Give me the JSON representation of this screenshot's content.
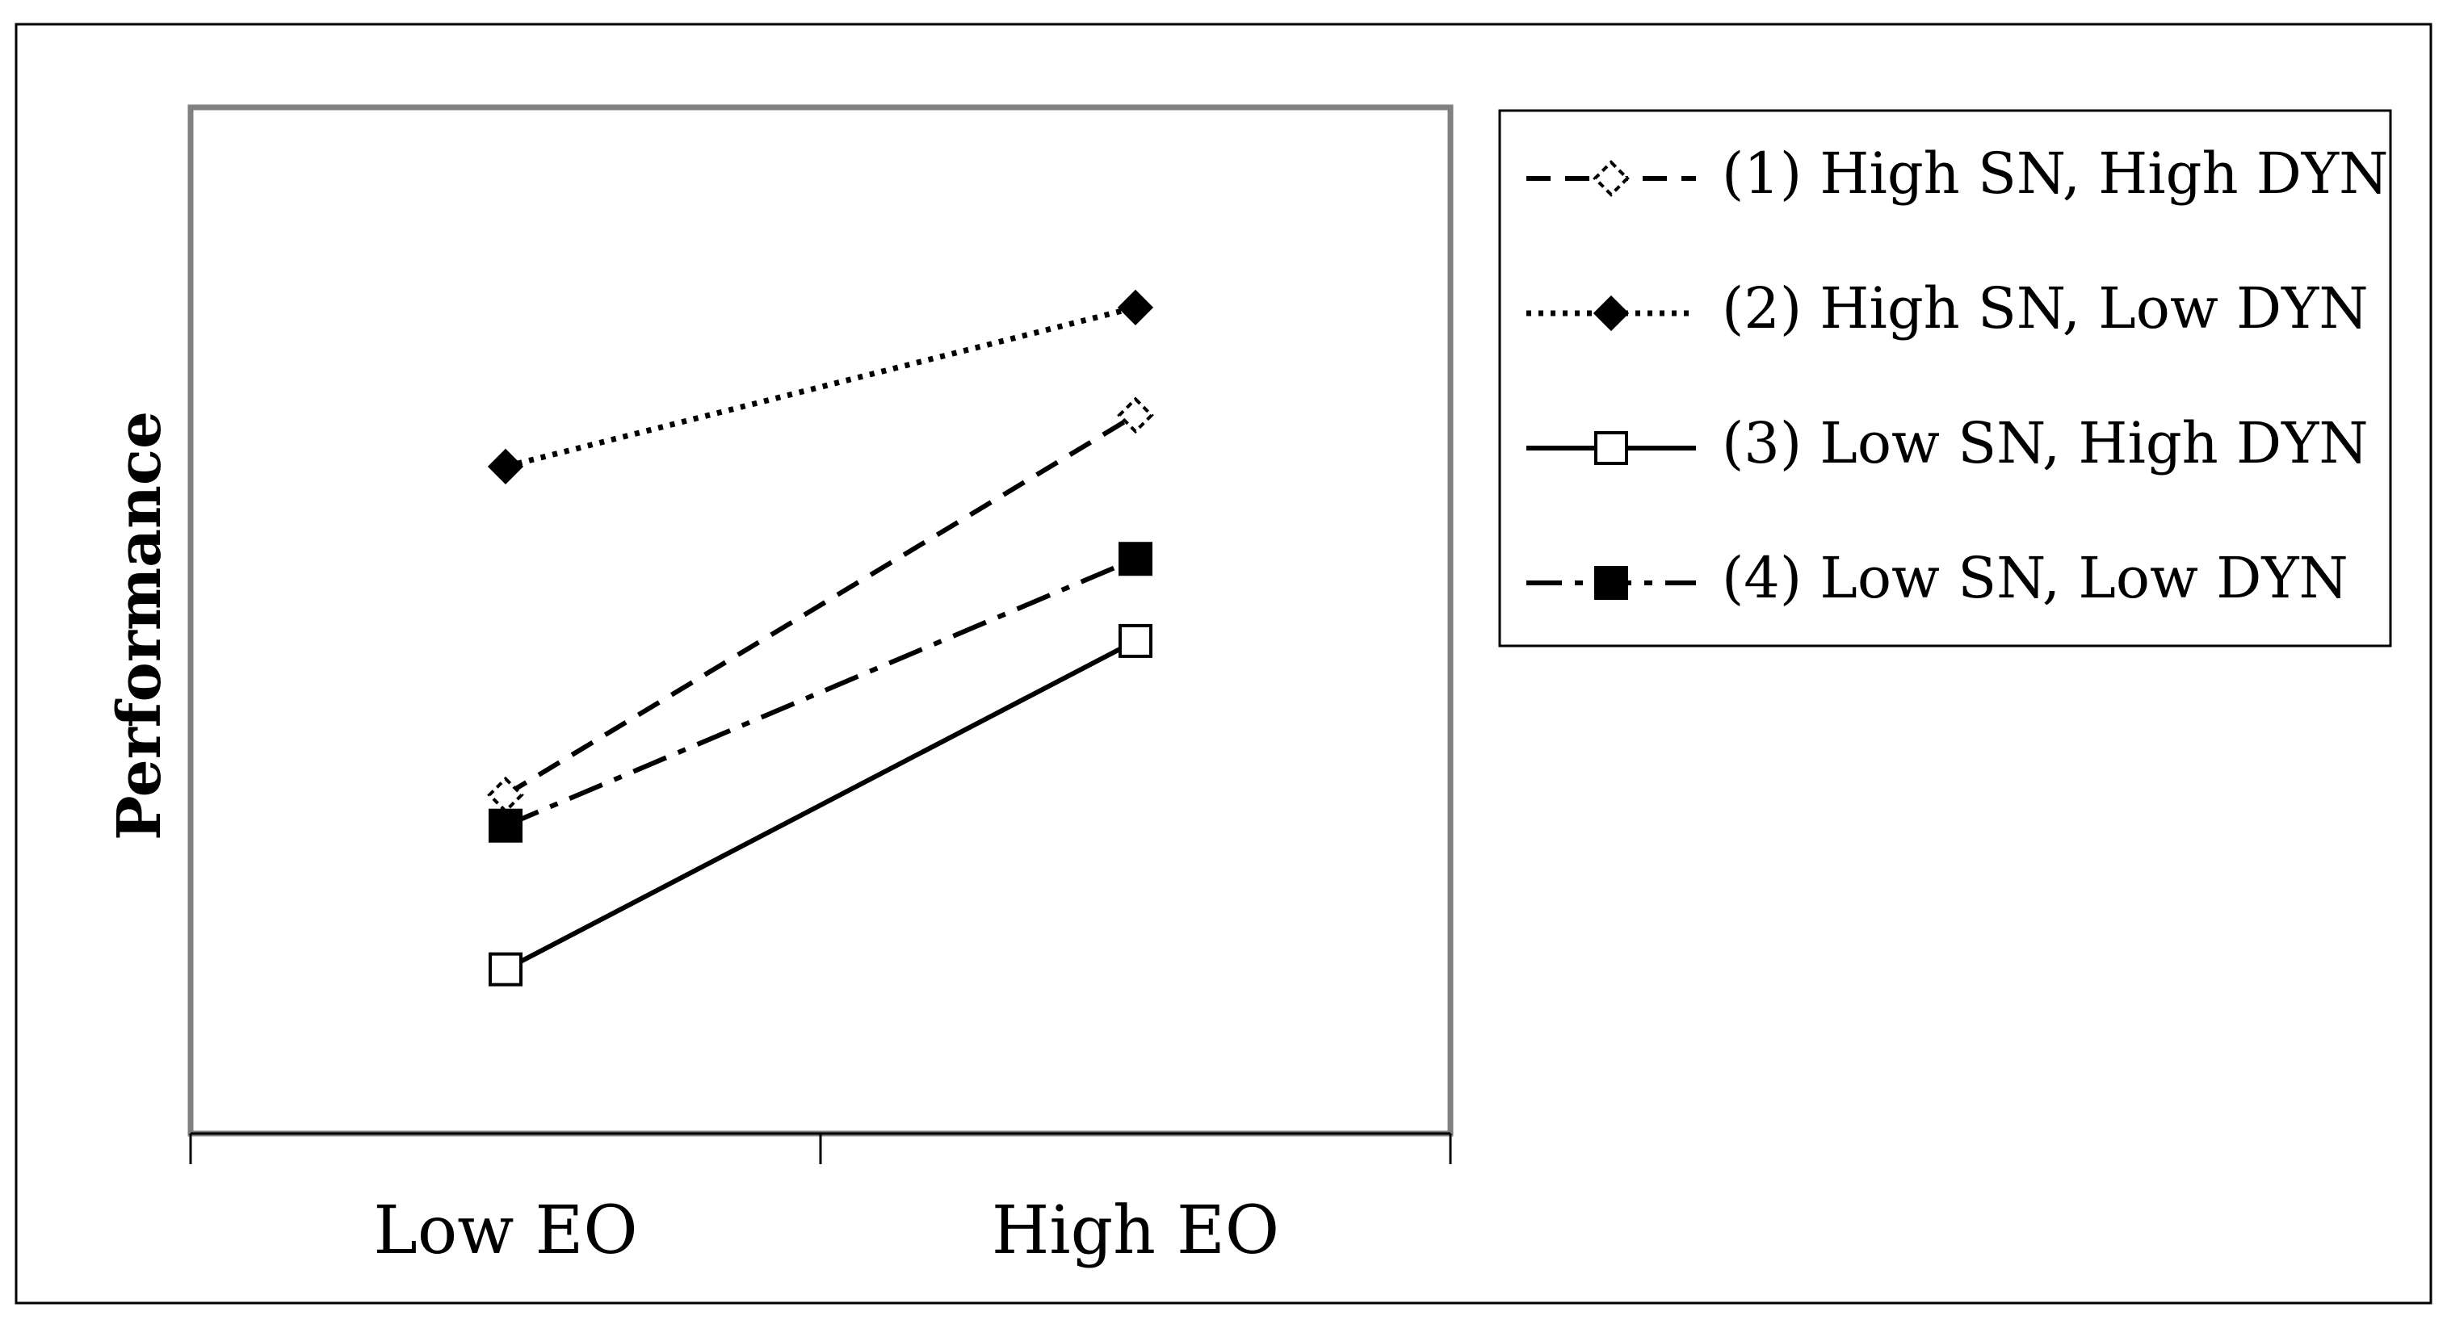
{
  "chart_data": {
    "type": "line",
    "title": "",
    "xlabel": "",
    "ylabel": "Performance",
    "categories": [
      "Low EO",
      "High EO"
    ],
    "ylim": [
      0,
      100
    ],
    "grid": false,
    "legend_position": "right",
    "series": [
      {
        "name": "(1) High SN, High DYN",
        "values": [
          33,
          70
        ],
        "line_style": "dashed",
        "marker": "diamond-open-dashed",
        "color": "#000000"
      },
      {
        "name": "(2) High SN, Low DYN",
        "values": [
          65,
          80.5
        ],
        "line_style": "dotted",
        "marker": "diamond-filled",
        "color": "#000000"
      },
      {
        "name": "(3) Low SN, High DYN",
        "values": [
          16,
          48
        ],
        "line_style": "solid",
        "marker": "square-open",
        "color": "#000000"
      },
      {
        "name": "(4) Low SN, Low DYN",
        "values": [
          30,
          56
        ],
        "line_style": "dash-dot",
        "marker": "square-filled",
        "color": "#000000"
      }
    ]
  }
}
